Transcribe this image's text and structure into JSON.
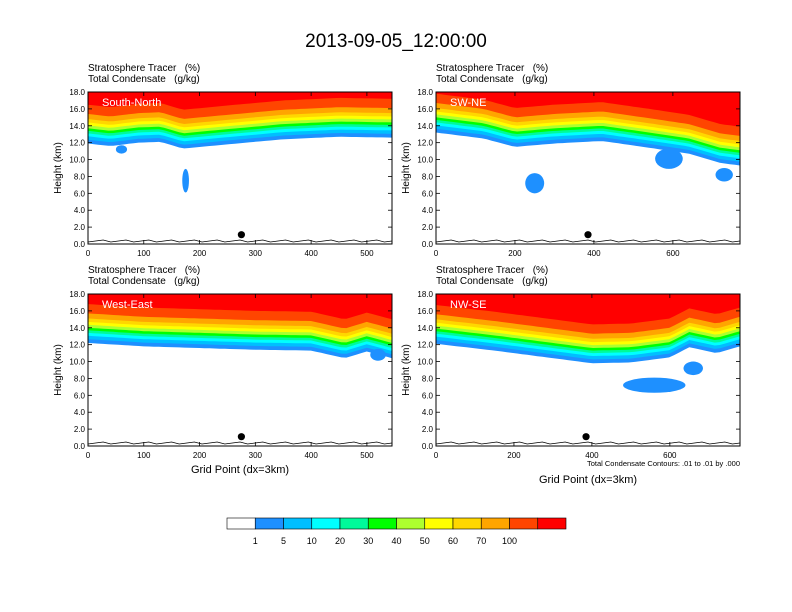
{
  "page_title": "2013-09-05_12:00:00",
  "chart_data": [
    {
      "type": "heatmap",
      "panel_label": "South-North",
      "header_line1": "Stratosphere Tracer   (%)",
      "header_line2": "Total Condensate   (g/kg)",
      "xlabel": "",
      "ylabel": "Height (km)",
      "xlim": [
        0,
        545
      ],
      "ylim": [
        0,
        18
      ],
      "x_ticks": [
        0,
        100,
        200,
        300,
        400,
        500
      ],
      "y_ticks": [
        "0.0",
        "2.0",
        "4.0",
        "6.0",
        "8.0",
        "10.0",
        "12.0",
        "14.0",
        "16.0",
        "18.0"
      ],
      "marker_x": 275,
      "marker_y": 1.1,
      "tracer_front": [
        [
          0,
          11.9
        ],
        [
          40,
          11.6
        ],
        [
          90,
          12.0
        ],
        [
          130,
          12.1
        ],
        [
          170,
          11.3
        ],
        [
          250,
          11.8
        ],
        [
          350,
          12.4
        ],
        [
          450,
          12.7
        ],
        [
          545,
          12.6
        ]
      ],
      "tracer_blobs": [
        [
          175,
          7.5,
          6,
          1.4
        ],
        [
          60,
          11.2,
          10,
          0.5
        ]
      ],
      "annotation": ""
    },
    {
      "type": "heatmap",
      "panel_label": "SW-NE",
      "header_line1": "Stratosphere Tracer   (%)",
      "header_line2": "Total Condensate   (g/kg)",
      "xlabel": "",
      "ylabel": "Height (km)",
      "xlim": [
        0,
        770
      ],
      "ylim": [
        0,
        18
      ],
      "x_ticks": [
        0,
        200,
        400,
        600
      ],
      "y_ticks": [
        "0.0",
        "2.0",
        "4.0",
        "6.0",
        "8.0",
        "10.0",
        "12.0",
        "14.0",
        "16.0",
        "18.0"
      ],
      "marker_x": 385,
      "marker_y": 1.1,
      "tracer_front": [
        [
          0,
          13.2
        ],
        [
          120,
          12.5
        ],
        [
          200,
          11.5
        ],
        [
          300,
          11.9
        ],
        [
          420,
          12.2
        ],
        [
          540,
          11.4
        ],
        [
          640,
          10.7
        ],
        [
          720,
          9.6
        ],
        [
          770,
          9.3
        ]
      ],
      "tracer_blobs": [
        [
          250,
          7.2,
          24,
          1.2
        ],
        [
          590,
          10.1,
          35,
          1.2
        ],
        [
          730,
          8.2,
          22,
          0.8
        ]
      ],
      "annotation": ""
    },
    {
      "type": "heatmap",
      "panel_label": "West-East",
      "header_line1": "Stratosphere Tracer   (%)",
      "header_line2": "Total Condensate   (g/kg)",
      "xlabel": "Grid Point (dx=3km)",
      "ylabel": "Height (km)",
      "xlim": [
        0,
        545
      ],
      "ylim": [
        0,
        18
      ],
      "x_ticks": [
        0,
        100,
        200,
        300,
        400,
        500
      ],
      "y_ticks": [
        "0.0",
        "2.0",
        "4.0",
        "6.0",
        "8.0",
        "10.0",
        "12.0",
        "14.0",
        "16.0",
        "18.0"
      ],
      "marker_x": 275,
      "marker_y": 1.1,
      "tracer_front": [
        [
          0,
          12.2
        ],
        [
          100,
          11.8
        ],
        [
          200,
          11.6
        ],
        [
          300,
          11.4
        ],
        [
          400,
          11.3
        ],
        [
          460,
          10.4
        ],
        [
          500,
          11.2
        ],
        [
          545,
          10.4
        ]
      ],
      "tracer_blobs": [
        [
          520,
          10.8,
          14,
          0.7
        ]
      ],
      "annotation": ""
    },
    {
      "type": "heatmap",
      "panel_label": "NW-SE",
      "header_line1": "Stratosphere Tracer   (%)",
      "header_line2": "Total Condensate   (g/kg)",
      "xlabel": "Grid Point (dx=3km)",
      "ylabel": "Height (km)",
      "xlim": [
        0,
        780
      ],
      "ylim": [
        0,
        18
      ],
      "x_ticks": [
        0,
        200,
        400,
        600
      ],
      "y_ticks": [
        "0.0",
        "2.0",
        "4.0",
        "6.0",
        "8.0",
        "10.0",
        "12.0",
        "14.0",
        "16.0",
        "18.0"
      ],
      "marker_x": 385,
      "marker_y": 1.1,
      "tracer_front": [
        [
          0,
          12.1
        ],
        [
          150,
          11.3
        ],
        [
          300,
          10.4
        ],
        [
          400,
          9.8
        ],
        [
          500,
          9.9
        ],
        [
          600,
          10.5
        ],
        [
          650,
          11.7
        ],
        [
          720,
          11.0
        ],
        [
          780,
          11.8
        ]
      ],
      "tracer_blobs": [
        [
          560,
          7.2,
          80,
          0.9
        ],
        [
          660,
          9.2,
          25,
          0.8
        ]
      ],
      "annotation": "Total Condensate Contours: .01 to .01 by .000"
    }
  ],
  "colorbar": {
    "labels": [
      "1",
      "5",
      "10",
      "20",
      "30",
      "40",
      "50",
      "60",
      "70",
      "100"
    ],
    "colors": [
      "#ffffff",
      "#1e90ff",
      "#00bfff",
      "#00ffff",
      "#00fa9a",
      "#00ff00",
      "#adff2f",
      "#ffff00",
      "#ffd700",
      "#ffa500",
      "#ff4500",
      "#ff0000"
    ]
  }
}
